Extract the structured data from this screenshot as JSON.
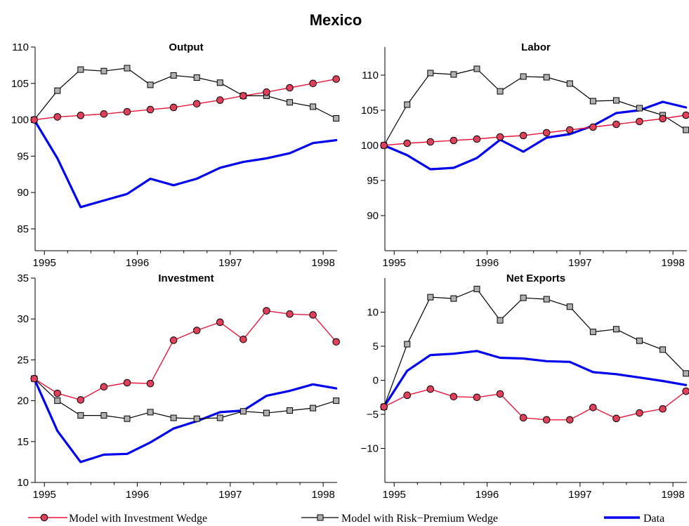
{
  "title": "Mexico",
  "colors": {
    "investment_wedge": "#e8173a",
    "marker_fill": "#e0405a",
    "risk_premium_wedge": "#000000",
    "square_fill": "#b0b0b0",
    "data": "#0000ee"
  },
  "legend": [
    {
      "label": "Model with Investment Wedge",
      "marker": "circle"
    },
    {
      "label": "Model with Risk−Premium Wedge",
      "marker": "square"
    },
    {
      "label": "Data",
      "marker": "none"
    }
  ],
  "chart_data": [
    {
      "type": "line",
      "title": "Output",
      "xlim": [
        1994.9,
        1998.15
      ],
      "xticks": [
        "1995",
        "1996",
        "1997",
        "1998"
      ],
      "ylim": [
        82,
        110
      ],
      "yticks": [
        "85",
        "90",
        "95",
        "100",
        "105",
        "110"
      ],
      "x": [
        1994.89,
        1995.14,
        1995.39,
        1995.64,
        1995.89,
        1996.14,
        1996.39,
        1996.64,
        1996.89,
        1997.14,
        1997.39,
        1997.64,
        1997.89,
        1998.14
      ],
      "series": [
        {
          "name": "Model with Investment Wedge",
          "values": [
            100.0,
            100.4,
            100.6,
            100.8,
            101.1,
            101.4,
            101.7,
            102.2,
            102.7,
            103.3,
            103.8,
            104.4,
            105.0,
            105.6
          ]
        },
        {
          "name": "Model with Risk−Premium Wedge",
          "values": [
            100.0,
            104.0,
            106.9,
            106.7,
            107.1,
            104.8,
            106.1,
            105.8,
            105.1,
            103.3,
            103.3,
            102.4,
            101.8,
            100.2
          ]
        },
        {
          "name": "Data",
          "values": [
            100.0,
            94.7,
            88.0,
            88.9,
            89.8,
            91.9,
            91.0,
            91.9,
            93.4,
            94.2,
            94.7,
            95.4,
            96.8,
            97.2
          ]
        }
      ]
    },
    {
      "type": "line",
      "title": "Labor",
      "xlim": [
        1994.9,
        1998.15
      ],
      "xticks": [
        "1995",
        "1996",
        "1997",
        "1998"
      ],
      "ylim": [
        85,
        114
      ],
      "yticks": [
        "90",
        "95",
        "100",
        "105",
        "110"
      ],
      "x": [
        1994.89,
        1995.14,
        1995.39,
        1995.64,
        1995.89,
        1996.14,
        1996.39,
        1996.64,
        1996.89,
        1997.14,
        1997.39,
        1997.64,
        1997.89,
        1998.14
      ],
      "series": [
        {
          "name": "Model with Investment Wedge",
          "values": [
            100.0,
            100.3,
            100.5,
            100.7,
            100.9,
            101.2,
            101.4,
            101.8,
            102.2,
            102.6,
            103.0,
            103.4,
            103.8,
            104.3
          ]
        },
        {
          "name": "Model with Risk−Premium Wedge",
          "values": [
            100.0,
            105.8,
            110.3,
            110.1,
            110.9,
            107.7,
            109.8,
            109.7,
            108.8,
            106.3,
            106.4,
            105.3,
            104.3,
            102.2
          ]
        },
        {
          "name": "Data",
          "values": [
            100.0,
            98.6,
            96.6,
            96.8,
            98.2,
            100.8,
            99.1,
            101.1,
            101.6,
            102.8,
            104.6,
            105.0,
            106.2,
            105.4
          ]
        }
      ]
    },
    {
      "type": "line",
      "title": "Investment",
      "xlim": [
        1994.9,
        1998.15
      ],
      "xticks": [
        "1995",
        "1996",
        "1997",
        "1998"
      ],
      "ylim": [
        10,
        35
      ],
      "yticks": [
        "10",
        "15",
        "20",
        "25",
        "30",
        "35"
      ],
      "x": [
        1994.89,
        1995.14,
        1995.39,
        1995.64,
        1995.89,
        1996.14,
        1996.39,
        1996.64,
        1996.89,
        1997.14,
        1997.39,
        1997.64,
        1997.89,
        1998.14
      ],
      "series": [
        {
          "name": "Model with Investment Wedge",
          "values": [
            22.7,
            20.9,
            20.1,
            21.7,
            22.2,
            22.1,
            27.4,
            28.6,
            29.6,
            27.5,
            31.0,
            30.6,
            30.5,
            27.2
          ]
        },
        {
          "name": "Model with Risk−Premium Wedge",
          "values": [
            22.7,
            20.0,
            18.2,
            18.2,
            17.8,
            18.6,
            17.9,
            17.8,
            17.9,
            18.7,
            18.5,
            18.8,
            19.1,
            20.0
          ]
        },
        {
          "name": "Data",
          "values": [
            22.7,
            16.3,
            12.5,
            13.4,
            13.5,
            14.9,
            16.6,
            17.5,
            18.6,
            18.8,
            20.6,
            21.2,
            22.0,
            21.5
          ]
        }
      ]
    },
    {
      "type": "line",
      "title": "Net Exports",
      "xlim": [
        1994.9,
        1998.15
      ],
      "xticks": [
        "1995",
        "1996",
        "1997",
        "1998"
      ],
      "ylim": [
        -15,
        15
      ],
      "yticks": [
        "−10",
        "−5",
        "0",
        "5",
        "10"
      ],
      "x": [
        1994.89,
        1995.14,
        1995.39,
        1995.64,
        1995.89,
        1996.14,
        1996.39,
        1996.64,
        1996.89,
        1997.14,
        1997.39,
        1997.64,
        1997.89,
        1998.14
      ],
      "series": [
        {
          "name": "Model with Investment Wedge",
          "values": [
            -3.9,
            -2.2,
            -1.3,
            -2.4,
            -2.5,
            -2.0,
            -5.5,
            -5.8,
            -5.8,
            -4.0,
            -5.6,
            -4.8,
            -4.2,
            -1.6
          ]
        },
        {
          "name": "Model with Risk−Premium Wedge",
          "values": [
            -3.9,
            5.3,
            12.2,
            12.0,
            13.4,
            8.8,
            12.1,
            11.9,
            10.8,
            7.1,
            7.5,
            5.8,
            4.5,
            1.0
          ]
        },
        {
          "name": "Data",
          "values": [
            -3.9,
            1.4,
            3.7,
            3.9,
            4.3,
            3.3,
            3.2,
            2.8,
            2.7,
            1.2,
            0.9,
            0.4,
            -0.1,
            -0.7
          ]
        }
      ]
    }
  ]
}
